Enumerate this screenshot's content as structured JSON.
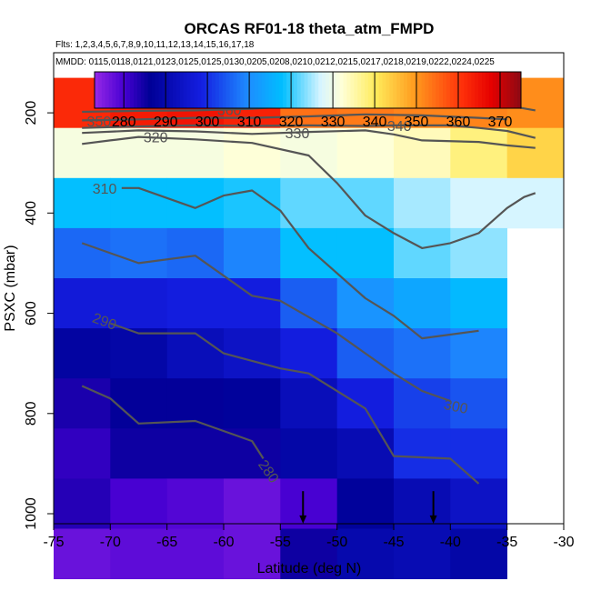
{
  "title": "ORCAS RF01-18 theta_atm_FMPD",
  "flights_label": "Flts: 1,2,3,4,5,6,7,8,9,10,11,12,13,14,15,16,17,18",
  "dates_label": "MMDD: 0115,0118,0121,0123,0125,0125,0130,0205,0208,0210,0212,0215,0217,0218,0219,0222,0224,0225",
  "colors": {
    "contour": "#555555",
    "arrow": "#000000"
  },
  "chart_data": {
    "type": "heatmap",
    "xlabel": "Latitude (deg N)",
    "ylabel": "PSXC (mbar)",
    "xlim": [
      -75,
      -30
    ],
    "ylim": [
      1020,
      80
    ],
    "x_ticks": [
      -75,
      -70,
      -65,
      -60,
      -55,
      -50,
      -45,
      -40,
      -35,
      -30
    ],
    "y_ticks": [
      200,
      400,
      600,
      800,
      1000
    ],
    "colorbar": {
      "ticks": [
        280,
        290,
        300,
        310,
        320,
        330,
        340,
        350,
        360,
        370
      ],
      "range": [
        273,
        375
      ]
    },
    "lat_bins": [
      -75,
      -70,
      -65,
      -60,
      -55,
      -50,
      -45,
      -40,
      -35,
      -30
    ],
    "pressure_bins": [
      100,
      200,
      300,
      400,
      500,
      600,
      700,
      800,
      900,
      1000
    ],
    "cells": [
      [
        362,
        364,
        365,
        363,
        354,
        353,
        352,
        352,
        351
      ],
      [
        331,
        331,
        331,
        332,
        331,
        332,
        334,
        338,
        343
      ],
      [
        318,
        318,
        318,
        319,
        322,
        322,
        325,
        327,
        327
      ],
      [
        306,
        307,
        306,
        309,
        318,
        318,
        322,
        324,
        null
      ],
      [
        297,
        297,
        298,
        298,
        305,
        311,
        314,
        317,
        null
      ],
      [
        288,
        289,
        292,
        294,
        298,
        305,
        307,
        309,
        null
      ],
      [
        284,
        286,
        286,
        287,
        292,
        298,
        302,
        304,
        null
      ],
      [
        282,
        285,
        285,
        285,
        289,
        291,
        300,
        300,
        null
      ],
      [
        283,
        280,
        279,
        277,
        280,
        287,
        291,
        294,
        null
      ],
      [
        277,
        278,
        278,
        277,
        285,
        290,
        291,
        289,
        null
      ]
    ],
    "contours": [
      {
        "level": 280,
        "label": "280",
        "points": [
          [
            -72.5,
            745
          ],
          [
            -70,
            770
          ],
          [
            -67.5,
            820
          ],
          [
            -62.5,
            815
          ],
          [
            -57.5,
            855
          ],
          [
            -56.5,
            890
          ]
        ]
      },
      {
        "level": 290,
        "label": "290",
        "points": [
          [
            -70,
            620
          ],
          [
            -67.5,
            640
          ],
          [
            -62.5,
            640
          ],
          [
            -60,
            680
          ],
          [
            -55,
            710
          ],
          [
            -52.5,
            720
          ],
          [
            -47.5,
            790
          ],
          [
            -45,
            885
          ],
          [
            -40,
            890
          ],
          [
            -37.5,
            940
          ]
        ]
      },
      {
        "level": 300,
        "label": "300",
        "points": [
          [
            -72.5,
            460
          ],
          [
            -67.5,
            500
          ],
          [
            -62.5,
            485
          ],
          [
            -57.5,
            565
          ],
          [
            -55,
            575
          ],
          [
            -50,
            640
          ],
          [
            -47.5,
            680
          ],
          [
            -45,
            720
          ],
          [
            -42.5,
            755
          ],
          [
            -40,
            775
          ]
        ]
      },
      {
        "level": 310,
        "label": "310",
        "points": [
          [
            -69,
            350
          ],
          [
            -67.5,
            350
          ],
          [
            -62.5,
            390
          ],
          [
            -60,
            365
          ],
          [
            -57.5,
            355
          ],
          [
            -55,
            395
          ],
          [
            -52.5,
            470
          ],
          [
            -47.5,
            570
          ],
          [
            -45,
            605
          ],
          [
            -42.5,
            650
          ],
          [
            -37.5,
            635
          ]
        ]
      },
      {
        "level": 320,
        "label": "320",
        "points": [
          [
            -72.5,
            262
          ],
          [
            -70,
            255
          ],
          [
            -67.5,
            248
          ],
          [
            -62.5,
            253
          ],
          [
            -57.5,
            260
          ],
          [
            -52.5,
            285
          ],
          [
            -50,
            340
          ],
          [
            -47.5,
            405
          ],
          [
            -45,
            440
          ],
          [
            -42.5,
            470
          ],
          [
            -40,
            460
          ],
          [
            -37.5,
            440
          ],
          [
            -35,
            390
          ],
          [
            -33.5,
            368
          ],
          [
            -32.5,
            360
          ]
        ]
      },
      {
        "level": 330,
        "label": "330",
        "points": [
          [
            -72.5,
            240
          ],
          [
            -67.5,
            235
          ],
          [
            -62.5,
            237
          ],
          [
            -57.5,
            242
          ],
          [
            -52.5,
            238
          ],
          [
            -47.5,
            235
          ],
          [
            -45,
            243
          ],
          [
            -42.5,
            255
          ],
          [
            -37.5,
            258
          ],
          [
            -35,
            265
          ],
          [
            -32.5,
            270
          ]
        ]
      },
      {
        "level": 340,
        "label": "340",
        "points": [
          [
            -72.5,
            230
          ],
          [
            -67.5,
            227
          ],
          [
            -62.5,
            225
          ],
          [
            -57.5,
            226
          ],
          [
            -52.5,
            225
          ],
          [
            -47.5,
            226
          ],
          [
            -45,
            225
          ],
          [
            -40,
            225
          ],
          [
            -37.5,
            230
          ],
          [
            -35,
            236
          ],
          [
            -32.5,
            250
          ]
        ]
      },
      {
        "level": 350,
        "label": "350",
        "points": [
          [
            -72.5,
            215
          ],
          [
            -67.5,
            213
          ],
          [
            -62.5,
            210
          ],
          [
            -57.5,
            210
          ],
          [
            -52.5,
            207
          ],
          [
            -47.5,
            203
          ],
          [
            -42.5,
            205
          ],
          [
            -37.5,
            210
          ],
          [
            -35,
            213
          ]
        ]
      },
      {
        "level": 360,
        "label": "360",
        "points": [
          [
            -72.5,
            198
          ],
          [
            -67.5,
            196
          ],
          [
            -62.5,
            195
          ],
          [
            -57.5,
            192
          ],
          [
            -55,
            188
          ]
        ]
      },
      {
        "level": 360,
        "label": "",
        "points": [
          [
            -35,
            185
          ],
          [
            -32.5,
            195
          ]
        ]
      }
    ],
    "contour_labels": [
      {
        "text": "360",
        "lat": -59.5,
        "p": 193,
        "angle": 0
      },
      {
        "text": "350",
        "lat": -71,
        "p": 216,
        "angle": 0
      },
      {
        "text": "340",
        "lat": -44.5,
        "p": 225,
        "angle": 0
      },
      {
        "text": "330",
        "lat": -53.5,
        "p": 240,
        "angle": 0
      },
      {
        "text": "320",
        "lat": -66,
        "p": 248,
        "angle": 0
      },
      {
        "text": "310",
        "lat": -70.5,
        "p": 350,
        "angle": 0
      },
      {
        "text": "290",
        "lat": -70.5,
        "p": 615,
        "angle": 20
      },
      {
        "text": "300",
        "lat": -39.5,
        "p": 785,
        "angle": 12
      },
      {
        "text": "280",
        "lat": -56,
        "p": 915,
        "angle": 55
      }
    ],
    "arrows": [
      {
        "lat": -53,
        "p_top": 955,
        "p_bottom": 1018
      },
      {
        "lat": -41.5,
        "p_top": 955,
        "p_bottom": 1018
      }
    ]
  }
}
